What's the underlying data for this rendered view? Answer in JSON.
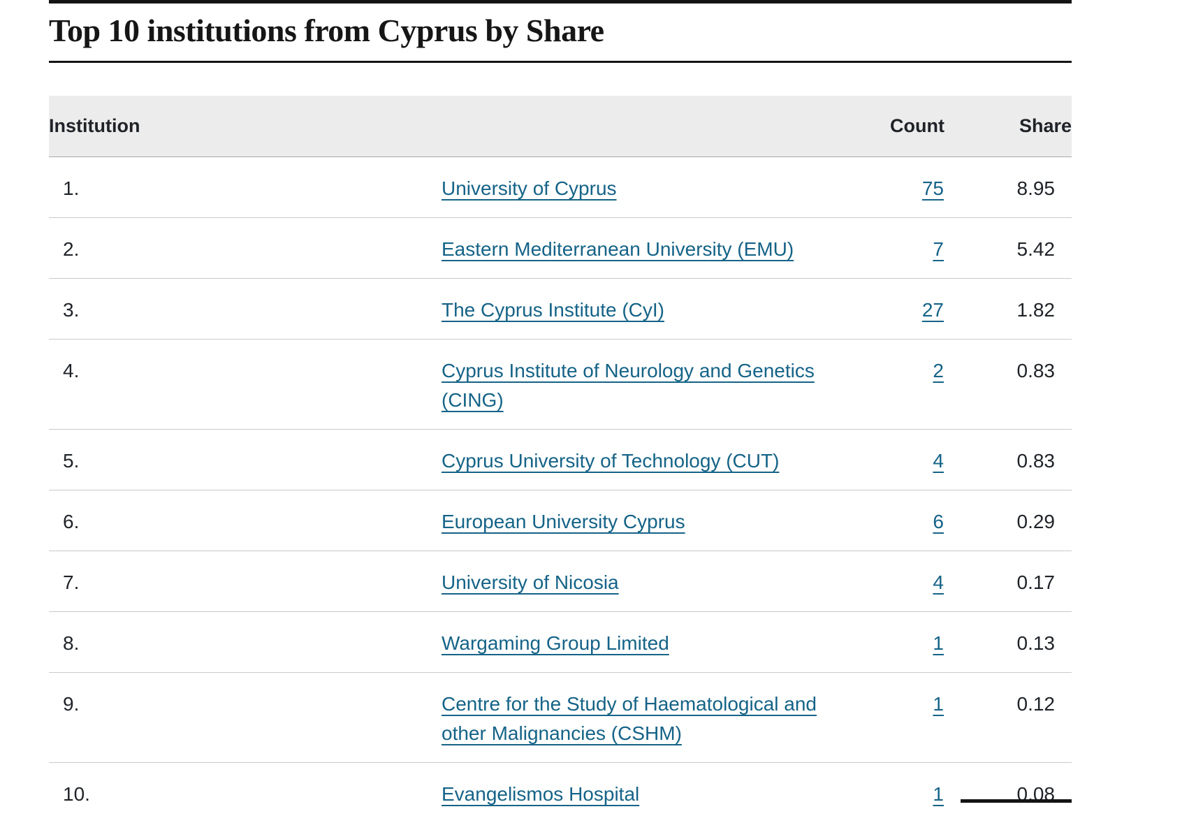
{
  "page": {
    "title": "Top 10 institutions from Cyprus by Share"
  },
  "colors": {
    "link": "#156387",
    "header_background": "#ececec",
    "rule_black": "#141414",
    "row_divider": "#c9c9c9",
    "text": "#1f2328"
  },
  "table": {
    "columns": {
      "institution": "Institution",
      "count": "Count",
      "share": "Share"
    },
    "rows": [
      {
        "rank": "1.",
        "institution": "University of Cyprus",
        "count": "75",
        "share": "8.95"
      },
      {
        "rank": "2.",
        "institution": "Eastern Mediterranean University (EMU)",
        "count": "7",
        "share": "5.42"
      },
      {
        "rank": "3.",
        "institution": "The Cyprus Institute (CyI)",
        "count": "27",
        "share": "1.82"
      },
      {
        "rank": "4.",
        "institution": "Cyprus Institute of Neurology and Genetics (CING)",
        "count": "2",
        "share": "0.83"
      },
      {
        "rank": "5.",
        "institution": "Cyprus University of Technology (CUT)",
        "count": "4",
        "share": "0.83"
      },
      {
        "rank": "6.",
        "institution": "European University Cyprus",
        "count": "6",
        "share": "0.29"
      },
      {
        "rank": "7.",
        "institution": "University of Nicosia",
        "count": "4",
        "share": "0.17"
      },
      {
        "rank": "8.",
        "institution": "Wargaming Group Limited",
        "count": "1",
        "share": "0.13"
      },
      {
        "rank": "9.",
        "institution": "Centre for the Study of Haematological and other Malignancies (CSHM)",
        "count": "1",
        "share": "0.12"
      },
      {
        "rank": "10.",
        "institution": "Evangelismos Hospital",
        "count": "1",
        "share": "0.08"
      }
    ]
  }
}
